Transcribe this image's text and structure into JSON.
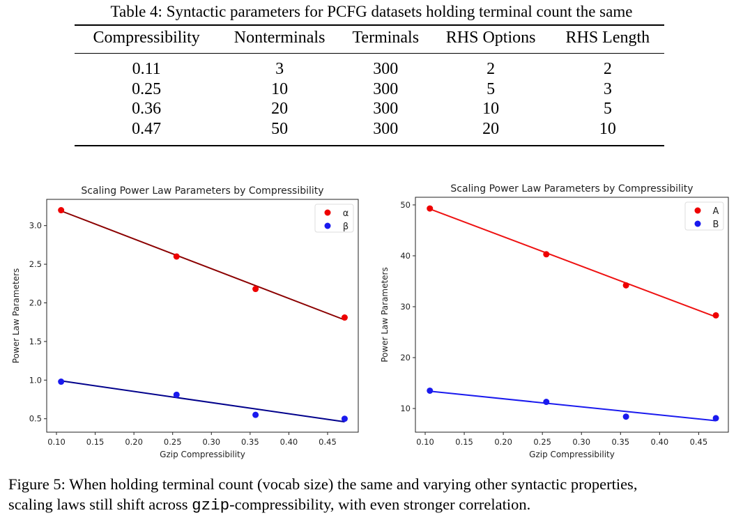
{
  "table": {
    "caption": "Table 4: Syntactic parameters for PCFG datasets holding terminal count the same",
    "headers": [
      "Compressibility",
      "Nonterminals",
      "Terminals",
      "RHS Options",
      "RHS Length"
    ],
    "rows": [
      [
        "0.11",
        "3",
        "300",
        "2",
        "2"
      ],
      [
        "0.25",
        "10",
        "300",
        "5",
        "3"
      ],
      [
        "0.36",
        "20",
        "300",
        "10",
        "5"
      ],
      [
        "0.47",
        "50",
        "300",
        "20",
        "10"
      ]
    ]
  },
  "chart_data": [
    {
      "type": "scatter",
      "title": "Scaling Power Law Parameters by Compressibility",
      "xlabel": "Gzip Compressibility",
      "ylabel": "Power Law Parameters",
      "xlim": [
        0.0874,
        0.4896
      ],
      "ylim": [
        0.326,
        3.34
      ],
      "xticks": [
        "0.10",
        "0.15",
        "0.20",
        "0.25",
        "0.30",
        "0.35",
        "0.40",
        "0.45"
      ],
      "yticks": [
        "0.5",
        "1.0",
        "1.5",
        "2.0",
        "2.5",
        "3.0"
      ],
      "legend": "top-right",
      "grid": false,
      "series": [
        {
          "name": "α",
          "color": "#ee0000",
          "line_color": "#8b0000",
          "x": [
            0.106,
            0.255,
            0.357,
            0.472
          ],
          "y": [
            3.2,
            2.6,
            2.18,
            1.81
          ],
          "fit": [
            [
              0.106,
              3.19
            ],
            [
              0.472,
              1.78
            ]
          ]
        },
        {
          "name": "β",
          "color": "#1a1aee",
          "line_color": "#00008b",
          "x": [
            0.106,
            0.255,
            0.357,
            0.472
          ],
          "y": [
            0.98,
            0.81,
            0.55,
            0.5
          ],
          "fit": [
            [
              0.106,
              0.99
            ],
            [
              0.472,
              0.46
            ]
          ]
        }
      ]
    },
    {
      "type": "scatter",
      "title": "Scaling Power Law Parameters by Compressibility",
      "xlabel": "Gzip Compressibility",
      "ylabel": "Power Law Parameters",
      "xlim": [
        0.0875,
        0.488
      ],
      "ylim": [
        5.35,
        51.5
      ],
      "xticks": [
        "0.10",
        "0.15",
        "0.20",
        "0.25",
        "0.30",
        "0.35",
        "0.40",
        "0.45"
      ],
      "yticks": [
        "10",
        "20",
        "30",
        "40",
        "50"
      ],
      "legend": "top-right",
      "grid": false,
      "series": [
        {
          "name": "A",
          "color": "#ee0000",
          "line_color": "#ee1111",
          "x": [
            0.106,
            0.255,
            0.357,
            0.472
          ],
          "y": [
            49.3,
            40.3,
            34.2,
            28.3
          ],
          "fit": [
            [
              0.106,
              49.2
            ],
            [
              0.472,
              28.0
            ]
          ]
        },
        {
          "name": "B",
          "color": "#1a1aee",
          "line_color": "#1a1aee",
          "x": [
            0.106,
            0.255,
            0.357,
            0.472
          ],
          "y": [
            13.5,
            11.3,
            8.4,
            8.1
          ],
          "fit": [
            [
              0.106,
              13.4
            ],
            [
              0.472,
              7.6
            ]
          ]
        }
      ]
    }
  ],
  "figure_caption": {
    "line1": "Figure 5: When holding terminal count (vocab size) the same and varying other syntactic properties,",
    "line2_pre": "scaling laws still shift across ",
    "line2_code": "gzip",
    "line2_post": "-compressibility, with even stronger correlation."
  }
}
